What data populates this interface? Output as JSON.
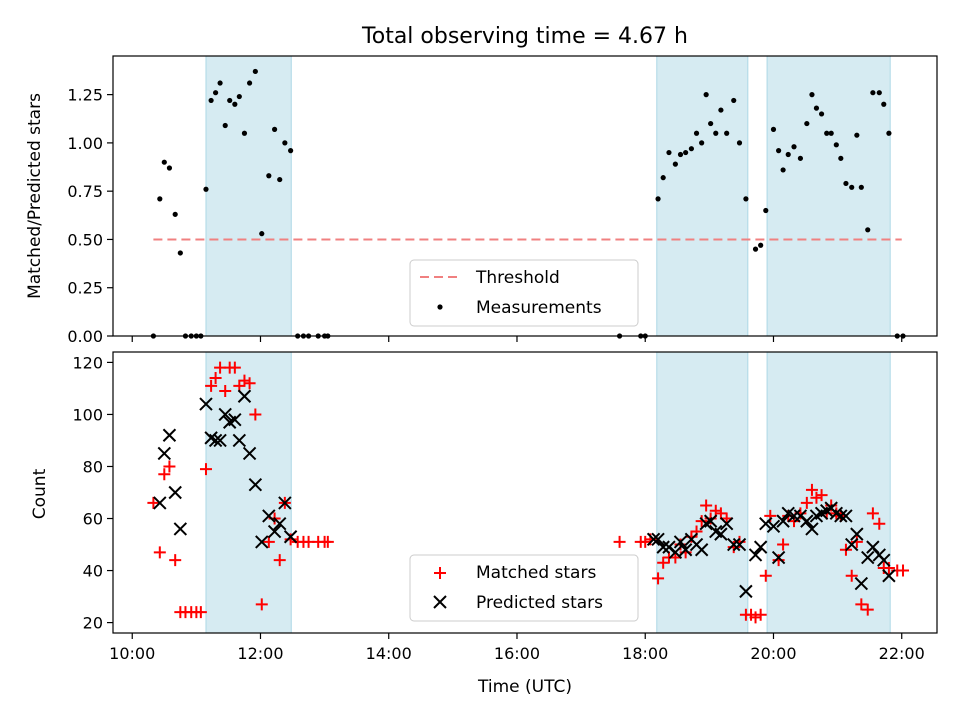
{
  "figure": {
    "title": "Total observing time = 4.67 h",
    "xlabel": "Time (UTC)",
    "x_tick_labels": [
      "10:00",
      "12:00",
      "14:00",
      "16:00",
      "18:00",
      "20:00",
      "22:00"
    ]
  },
  "chart_data": [
    {
      "type": "scatter",
      "ylabel": "Matched/Predicted stars",
      "x_unit": "hours UTC",
      "xlim": [
        9.7,
        22.55
      ],
      "ylim": [
        0,
        1.45
      ],
      "y_ticks": [
        "0.00",
        "0.25",
        "0.50",
        "0.75",
        "1.00",
        "1.25"
      ],
      "grid": false,
      "legend_position": "lower center",
      "shaded_intervals": [
        [
          11.15,
          12.48
        ],
        [
          18.18,
          19.6
        ],
        [
          19.9,
          21.82
        ]
      ],
      "threshold": {
        "name": "Threshold",
        "value": 0.5,
        "x_range": [
          10.33,
          22.0
        ],
        "color": "#f08080"
      },
      "series": [
        {
          "name": "Measurements",
          "color": "#000000",
          "points": [
            [
              10.33,
              0.0
            ],
            [
              10.43,
              0.71
            ],
            [
              10.5,
              0.9
            ],
            [
              10.58,
              0.87
            ],
            [
              10.67,
              0.63
            ],
            [
              10.75,
              0.43
            ],
            [
              10.83,
              0.0
            ],
            [
              10.92,
              0.0
            ],
            [
              11.0,
              0.0
            ],
            [
              11.07,
              0.0
            ],
            [
              11.15,
              0.76
            ],
            [
              11.23,
              1.22
            ],
            [
              11.3,
              1.26
            ],
            [
              11.37,
              1.31
            ],
            [
              11.45,
              1.09
            ],
            [
              11.52,
              1.22
            ],
            [
              11.6,
              1.2
            ],
            [
              11.67,
              1.24
            ],
            [
              11.75,
              1.05
            ],
            [
              11.83,
              1.31
            ],
            [
              11.92,
              1.37
            ],
            [
              12.02,
              0.53
            ],
            [
              12.13,
              0.83
            ],
            [
              12.22,
              1.07
            ],
            [
              12.3,
              0.81
            ],
            [
              12.38,
              1.0
            ],
            [
              12.47,
              0.96
            ],
            [
              12.58,
              0.0
            ],
            [
              12.67,
              0.0
            ],
            [
              12.75,
              0.0
            ],
            [
              12.9,
              0.0
            ],
            [
              13.0,
              0.0
            ],
            [
              13.05,
              0.0
            ],
            [
              17.6,
              0.0
            ],
            [
              17.93,
              0.0
            ],
            [
              18.0,
              0.0
            ],
            [
              18.2,
              0.71
            ],
            [
              18.28,
              0.82
            ],
            [
              18.37,
              0.95
            ],
            [
              18.47,
              0.89
            ],
            [
              18.55,
              0.94
            ],
            [
              18.63,
              0.95
            ],
            [
              18.72,
              0.97
            ],
            [
              18.8,
              1.05
            ],
            [
              18.88,
              1.0
            ],
            [
              18.95,
              1.25
            ],
            [
              19.02,
              1.1
            ],
            [
              19.1,
              1.05
            ],
            [
              19.18,
              1.17
            ],
            [
              19.27,
              1.05
            ],
            [
              19.38,
              1.22
            ],
            [
              19.47,
              1.0
            ],
            [
              19.57,
              0.71
            ],
            [
              19.72,
              0.45
            ],
            [
              19.8,
              0.47
            ],
            [
              19.88,
              0.65
            ],
            [
              20.0,
              1.07
            ],
            [
              20.08,
              0.96
            ],
            [
              20.15,
              0.86
            ],
            [
              20.23,
              0.94
            ],
            [
              20.32,
              0.98
            ],
            [
              20.42,
              0.92
            ],
            [
              20.52,
              1.1
            ],
            [
              20.6,
              1.25
            ],
            [
              20.67,
              1.18
            ],
            [
              20.75,
              1.15
            ],
            [
              20.83,
              1.05
            ],
            [
              20.9,
              1.05
            ],
            [
              20.98,
              0.99
            ],
            [
              21.05,
              0.92
            ],
            [
              21.13,
              0.79
            ],
            [
              21.22,
              0.77
            ],
            [
              21.3,
              1.04
            ],
            [
              21.37,
              0.77
            ],
            [
              21.47,
              0.55
            ],
            [
              21.55,
              1.26
            ],
            [
              21.65,
              1.26
            ],
            [
              21.72,
              1.2
            ],
            [
              21.8,
              1.05
            ],
            [
              21.93,
              0.0
            ],
            [
              22.02,
              0.0
            ]
          ]
        }
      ]
    },
    {
      "type": "scatter",
      "ylabel": "Count",
      "x_unit": "hours UTC",
      "xlim": [
        9.7,
        22.55
      ],
      "ylim": [
        16,
        124
      ],
      "y_ticks": [
        "20",
        "40",
        "60",
        "80",
        "100",
        "120"
      ],
      "grid": false,
      "legend_position": "lower center",
      "shaded_intervals": [
        [
          11.15,
          12.48
        ],
        [
          18.18,
          19.6
        ],
        [
          19.9,
          21.82
        ]
      ],
      "series": [
        {
          "name": "Matched stars",
          "marker": "plus",
          "color": "#ff0000",
          "points": [
            [
              10.33,
              66
            ],
            [
              10.43,
              47
            ],
            [
              10.5,
              77
            ],
            [
              10.58,
              80
            ],
            [
              10.67,
              44
            ],
            [
              10.75,
              24
            ],
            [
              10.83,
              24
            ],
            [
              10.92,
              24
            ],
            [
              11.0,
              24
            ],
            [
              11.07,
              24
            ],
            [
              11.15,
              79
            ],
            [
              11.23,
              111
            ],
            [
              11.3,
              114
            ],
            [
              11.37,
              118
            ],
            [
              11.45,
              109
            ],
            [
              11.52,
              118
            ],
            [
              11.6,
              118
            ],
            [
              11.67,
              111
            ],
            [
              11.75,
              113
            ],
            [
              11.83,
              112
            ],
            [
              11.92,
              100
            ],
            [
              12.02,
              27
            ],
            [
              12.13,
              51
            ],
            [
              12.22,
              60
            ],
            [
              12.3,
              44
            ],
            [
              12.38,
              66
            ],
            [
              12.47,
              52
            ],
            [
              12.58,
              51
            ],
            [
              12.67,
              51
            ],
            [
              12.75,
              51
            ],
            [
              12.9,
              51
            ],
            [
              13.0,
              51
            ],
            [
              13.05,
              51
            ],
            [
              17.6,
              51
            ],
            [
              17.93,
              51
            ],
            [
              18.0,
              51
            ],
            [
              18.08,
              52
            ],
            [
              18.2,
              37
            ],
            [
              18.28,
              43
            ],
            [
              18.37,
              45
            ],
            [
              18.47,
              45
            ],
            [
              18.55,
              50
            ],
            [
              18.63,
              47
            ],
            [
              18.72,
              53
            ],
            [
              18.8,
              55
            ],
            [
              18.88,
              59
            ],
            [
              18.95,
              65
            ],
            [
              19.02,
              60
            ],
            [
              19.1,
              63
            ],
            [
              19.18,
              62
            ],
            [
              19.27,
              60
            ],
            [
              19.38,
              49
            ],
            [
              19.47,
              51
            ],
            [
              19.57,
              23
            ],
            [
              19.65,
              23
            ],
            [
              19.72,
              22
            ],
            [
              19.8,
              23
            ],
            [
              19.88,
              38
            ],
            [
              19.95,
              61
            ],
            [
              20.08,
              44
            ],
            [
              20.15,
              50
            ],
            [
              20.23,
              61
            ],
            [
              20.32,
              59
            ],
            [
              20.42,
              62
            ],
            [
              20.52,
              66
            ],
            [
              20.6,
              71
            ],
            [
              20.67,
              68
            ],
            [
              20.75,
              69
            ],
            [
              20.83,
              62
            ],
            [
              20.9,
              65
            ],
            [
              20.98,
              62
            ],
            [
              21.05,
              61
            ],
            [
              21.13,
              48
            ],
            [
              21.22,
              38
            ],
            [
              21.3,
              51
            ],
            [
              21.37,
              27
            ],
            [
              21.47,
              25
            ],
            [
              21.55,
              62
            ],
            [
              21.65,
              58
            ],
            [
              21.72,
              41
            ],
            [
              21.8,
              41
            ],
            [
              21.93,
              40
            ],
            [
              22.02,
              40
            ]
          ]
        },
        {
          "name": "Predicted stars",
          "marker": "x",
          "color": "#000000",
          "points": [
            [
              10.43,
              66
            ],
            [
              10.5,
              85
            ],
            [
              10.58,
              92
            ],
            [
              10.67,
              70
            ],
            [
              10.75,
              56
            ],
            [
              11.15,
              104
            ],
            [
              11.23,
              91
            ],
            [
              11.3,
              90
            ],
            [
              11.37,
              90
            ],
            [
              11.45,
              100
            ],
            [
              11.52,
              97
            ],
            [
              11.6,
              98
            ],
            [
              11.67,
              90
            ],
            [
              11.75,
              107
            ],
            [
              11.83,
              85
            ],
            [
              11.92,
              73
            ],
            [
              12.02,
              51
            ],
            [
              12.13,
              61
            ],
            [
              12.22,
              55
            ],
            [
              12.3,
              58
            ],
            [
              12.38,
              66
            ],
            [
              12.47,
              53
            ],
            [
              18.13,
              52
            ],
            [
              18.2,
              52
            ],
            [
              18.28,
              49
            ],
            [
              18.37,
              49
            ],
            [
              18.47,
              47
            ],
            [
              18.55,
              51
            ],
            [
              18.63,
              48
            ],
            [
              18.72,
              52
            ],
            [
              18.8,
              50
            ],
            [
              18.88,
              48
            ],
            [
              18.95,
              58
            ],
            [
              19.02,
              59
            ],
            [
              19.1,
              55
            ],
            [
              19.18,
              54
            ],
            [
              19.27,
              58
            ],
            [
              19.38,
              50
            ],
            [
              19.47,
              50
            ],
            [
              19.57,
              32
            ],
            [
              19.72,
              46
            ],
            [
              19.8,
              49
            ],
            [
              19.88,
              58
            ],
            [
              20.0,
              57
            ],
            [
              20.08,
              45
            ],
            [
              20.15,
              59
            ],
            [
              20.23,
              62
            ],
            [
              20.32,
              61
            ],
            [
              20.42,
              61
            ],
            [
              20.52,
              59
            ],
            [
              20.6,
              56
            ],
            [
              20.67,
              61
            ],
            [
              20.75,
              62
            ],
            [
              20.83,
              63
            ],
            [
              20.9,
              64
            ],
            [
              20.98,
              62
            ],
            [
              21.05,
              61
            ],
            [
              21.13,
              61
            ],
            [
              21.22,
              50
            ],
            [
              21.3,
              54
            ],
            [
              21.37,
              35
            ],
            [
              21.47,
              45
            ],
            [
              21.55,
              49
            ],
            [
              21.65,
              46
            ],
            [
              21.72,
              44
            ],
            [
              21.8,
              38
            ]
          ]
        }
      ]
    }
  ]
}
